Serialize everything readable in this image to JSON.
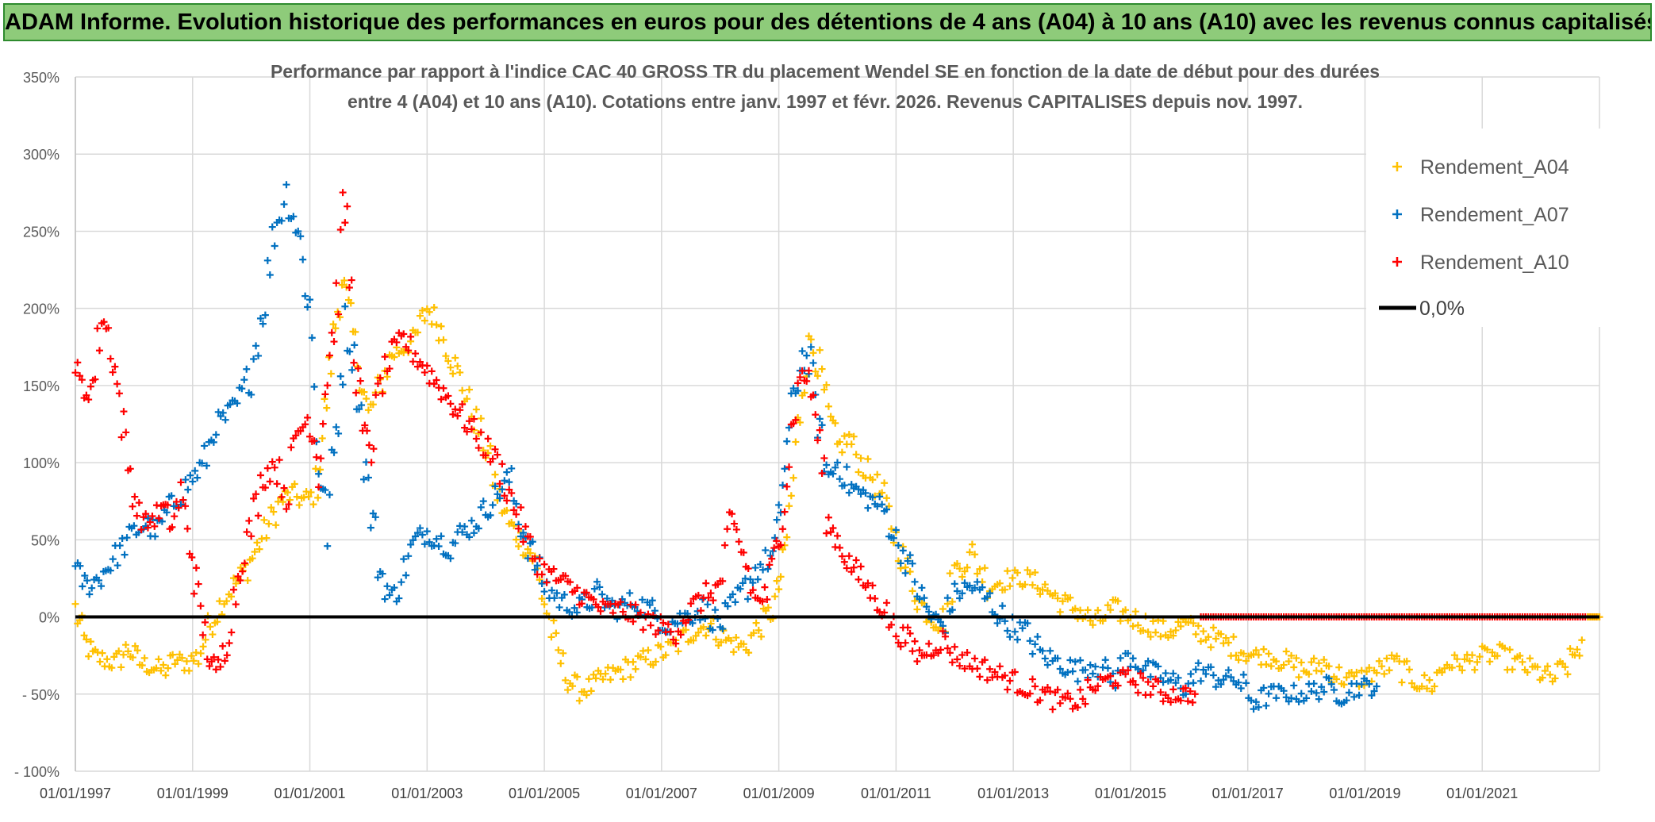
{
  "banner": {
    "text": "ADAM Informe. Evolution historique des performances en euros pour des détentions de 4 ans (A04) à 10 ans (A10) avec les revenus connus capitalisés"
  },
  "colors": {
    "banner_bg": "#8ecb7a",
    "A04": "#ffc000",
    "A07": "#0070c0",
    "A10": "#ff0000",
    "zero_line": "#000000",
    "grid": "#d9d9d9"
  },
  "chart_data": {
    "type": "scatter",
    "title_line1": "Performance par rapport à l'indice CAC 40 GROSS TR  du placement Wendel SE en fonction de la date de début pour des durées",
    "title_line2": "entre 4 (A04) et 10 ans (A10). Cotations entre janv. 1997 et févr. 2026. Revenus CAPITALISES depuis nov. 1997.",
    "xlabel": "",
    "ylabel": "",
    "x_range": [
      1997.0,
      2023.0
    ],
    "ylim": [
      -100,
      350
    ],
    "y_ticks": [
      {
        "value": 350,
        "label": "350%"
      },
      {
        "value": 300,
        "label": "300%"
      },
      {
        "value": 250,
        "label": "250%"
      },
      {
        "value": 200,
        "label": "200%"
      },
      {
        "value": 150,
        "label": "150%"
      },
      {
        "value": 100,
        "label": "100%"
      },
      {
        "value": 50,
        "label": "50%"
      },
      {
        "value": 0,
        "label": "0%"
      },
      {
        "value": -50,
        "label": "- 50%"
      },
      {
        "value": -100,
        "label": "- 100%"
      }
    ],
    "x_ticks": [
      {
        "value": 1997,
        "label": "01/01/1997"
      },
      {
        "value": 1999,
        "label": "01/01/1999"
      },
      {
        "value": 2001,
        "label": "01/01/2001"
      },
      {
        "value": 2003,
        "label": "01/01/2003"
      },
      {
        "value": 2005,
        "label": "01/01/2005"
      },
      {
        "value": 2007,
        "label": "01/01/2007"
      },
      {
        "value": 2009,
        "label": "01/01/2009"
      },
      {
        "value": 2011,
        "label": "01/01/2011"
      },
      {
        "value": 2013,
        "label": "01/01/2013"
      },
      {
        "value": 2015,
        "label": "01/01/2015"
      },
      {
        "value": 2017,
        "label": "01/01/2017"
      },
      {
        "value": 2019,
        "label": "01/01/2019"
      },
      {
        "value": 2021,
        "label": "01/01/2021"
      }
    ],
    "x_grid_years": [
      1997,
      1999,
      2001,
      2003,
      2005,
      2007,
      2009,
      2011,
      2013,
      2015,
      2017,
      2019,
      2021,
      2023
    ],
    "legend": [
      {
        "key": "A04",
        "label": "Rendement_A04",
        "kind": "marker"
      },
      {
        "key": "A07",
        "label": "Rendement_A07",
        "kind": "marker"
      },
      {
        "key": "A10",
        "label": "Rendement_A10",
        "kind": "marker"
      },
      {
        "key": "zero",
        "label": "0,0%",
        "kind": "line"
      }
    ],
    "zero_line": {
      "label": "0,0%",
      "value": 0
    },
    "series": [
      {
        "name": "Rendement_A04",
        "key": "A04",
        "x": [
          1997.0,
          1997.15,
          1997.3,
          1997.5,
          1997.7,
          1997.9,
          1998.1,
          1998.3,
          1998.5,
          1998.7,
          1998.9,
          1999.1,
          1999.3,
          1999.5,
          1999.7,
          1999.9,
          2000.1,
          2000.3,
          2000.5,
          2000.7,
          2000.9,
          2001.1,
          2001.25,
          2001.4,
          2001.55,
          2001.7,
          2001.85,
          2002.0,
          2002.2,
          2002.4,
          2002.6,
          2002.8,
          2003.0,
          2003.2,
          2003.4,
          2003.6,
          2003.8,
          2004.0,
          2004.2,
          2004.4,
          2004.6,
          2004.8,
          2005.0,
          2005.2,
          2005.4,
          2005.6,
          2005.8,
          2006.0,
          2006.3,
          2006.6,
          2006.9,
          2007.2,
          2007.5,
          2007.8,
          2008.1,
          2008.4,
          2008.7,
          2008.9,
          2009.0,
          2009.1,
          2009.25,
          2009.4,
          2009.55,
          2009.7,
          2009.85,
          2010.0,
          2010.2,
          2010.4,
          2010.6,
          2010.8,
          2011.0,
          2011.2,
          2011.4,
          2011.6,
          2011.8,
          2012.0,
          2012.3,
          2012.6,
          2012.9,
          2013.2,
          2013.5,
          2013.8,
          2014.1,
          2014.4,
          2014.7,
          2015.0,
          2015.3,
          2015.6,
          2015.9,
          2016.2,
          2016.5,
          2016.8,
          2017.1,
          2017.4,
          2017.7,
          2018.0,
          2018.3,
          2018.6,
          2018.9,
          2019.2,
          2019.5,
          2019.8,
          2020.1,
          2020.4,
          2020.7,
          2021.0,
          2021.3,
          2021.6,
          2021.9,
          2022.2,
          2022.5,
          2022.7
        ],
        "values": [
          5,
          -15,
          -25,
          -28,
          -30,
          -20,
          -30,
          -32,
          -35,
          -28,
          -30,
          -25,
          -5,
          10,
          20,
          30,
          45,
          60,
          75,
          80,
          75,
          80,
          130,
          180,
          220,
          190,
          160,
          130,
          150,
          170,
          175,
          180,
          200,
          190,
          170,
          150,
          130,
          110,
          80,
          60,
          50,
          40,
          10,
          -20,
          -40,
          -48,
          -45,
          -40,
          -35,
          -30,
          -25,
          -20,
          -10,
          -5,
          -15,
          -20,
          -5,
          5,
          20,
          40,
          90,
          150,
          180,
          160,
          130,
          110,
          115,
          100,
          90,
          75,
          50,
          30,
          10,
          0,
          -5,
          30,
          40,
          20,
          25,
          25,
          20,
          10,
          5,
          -5,
          5,
          0,
          -5,
          -10,
          -5,
          -10,
          -15,
          -20,
          -25,
          -25,
          -30,
          -35,
          -30,
          -40,
          -40,
          -35,
          -30,
          -40,
          -45,
          -30,
          -30,
          -25,
          -25,
          -30,
          -35,
          -40,
          -30,
          -15
        ]
      },
      {
        "name": "Rendement_A07",
        "key": "A07",
        "x": [
          1997.0,
          1997.2,
          1997.4,
          1997.6,
          1997.8,
          1998.0,
          1998.2,
          1998.4,
          1998.6,
          1998.8,
          1999.0,
          1999.2,
          1999.4,
          1999.6,
          1999.8,
          2000.0,
          2000.2,
          2000.4,
          2000.6,
          2000.8,
          2001.0,
          2001.15,
          2001.3,
          2001.45,
          2001.6,
          2001.8,
          2002.0,
          2002.2,
          2002.4,
          2002.6,
          2002.8,
          2003.0,
          2003.2,
          2003.4,
          2003.6,
          2003.8,
          2004.0,
          2004.2,
          2004.4,
          2004.6,
          2004.8,
          2005.0,
          2005.3,
          2005.6,
          2005.9,
          2006.2,
          2006.5,
          2006.8,
          2007.1,
          2007.4,
          2007.7,
          2008.0,
          2008.3,
          2008.6,
          2008.9,
          2009.0,
          2009.1,
          2009.25,
          2009.4,
          2009.55,
          2009.7,
          2009.85,
          2010.0,
          2010.2,
          2010.4,
          2010.6,
          2010.8,
          2011.0,
          2011.2,
          2011.4,
          2011.6,
          2011.8,
          2012.0,
          2012.3,
          2012.6,
          2012.9,
          2013.2,
          2013.5,
          2013.8,
          2014.1,
          2014.4,
          2014.7,
          2015.0,
          2015.3,
          2015.6,
          2015.9,
          2016.2,
          2016.5,
          2016.8,
          2017.1,
          2017.4,
          2017.7,
          2018.0,
          2018.3,
          2018.6,
          2018.9,
          2019.2
        ],
        "values": [
          30,
          20,
          25,
          35,
          45,
          55,
          60,
          55,
          70,
          80,
          90,
          100,
          125,
          130,
          140,
          160,
          200,
          250,
          275,
          250,
          200,
          100,
          60,
          120,
          190,
          160,
          80,
          30,
          10,
          30,
          50,
          55,
          50,
          45,
          55,
          60,
          70,
          80,
          90,
          60,
          40,
          20,
          10,
          5,
          15,
          5,
          10,
          5,
          -5,
          0,
          5,
          -5,
          10,
          30,
          40,
          60,
          100,
          140,
          170,
          160,
          120,
          90,
          100,
          85,
          80,
          75,
          70,
          50,
          35,
          15,
          0,
          -5,
          15,
          20,
          10,
          -5,
          -10,
          -25,
          -30,
          -35,
          -30,
          -40,
          -25,
          -35,
          -40,
          -45,
          -35,
          -40,
          -40,
          -55,
          -50,
          -50,
          -50,
          -45,
          -50,
          -45,
          -45
        ]
      },
      {
        "name": "Rendement_A10",
        "key": "A10",
        "x": [
          1997.0,
          1997.15,
          1997.3,
          1997.45,
          1997.6,
          1997.75,
          1997.9,
          1998.05,
          1998.2,
          1998.35,
          1998.5,
          1998.65,
          1998.8,
          1998.95,
          1999.1,
          1999.25,
          1999.4,
          1999.55,
          1999.7,
          1999.85,
          2000.0,
          2000.2,
          2000.4,
          2000.6,
          2000.8,
          2001.0,
          2001.15,
          2001.3,
          2001.45,
          2001.6,
          2001.75,
          2001.9,
          2002.05,
          2002.2,
          2002.4,
          2002.6,
          2002.8,
          2003.0,
          2003.2,
          2003.4,
          2003.6,
          2003.8,
          2004.0,
          2004.2,
          2004.4,
          2004.6,
          2004.8,
          2005.0,
          2005.2,
          2005.4,
          2005.6,
          2005.8,
          2006.0,
          2006.3,
          2006.6,
          2006.9,
          2007.2,
          2007.5,
          2007.8,
          2008.0,
          2008.2,
          2008.4,
          2008.6,
          2008.8,
          2009.0,
          2009.1,
          2009.25,
          2009.4,
          2009.55,
          2009.7,
          2009.85,
          2010.0,
          2010.2,
          2010.4,
          2010.6,
          2010.8,
          2011.0,
          2011.2,
          2011.4,
          2011.6,
          2011.8,
          2012.0,
          2012.3,
          2012.6,
          2012.9,
          2013.2,
          2013.5,
          2013.8,
          2014.1,
          2014.4,
          2014.7,
          2015.0,
          2015.3,
          2015.6,
          2015.9,
          2016.1
        ],
        "values": [
          160,
          145,
          150,
          195,
          180,
          140,
          100,
          70,
          60,
          65,
          70,
          60,
          80,
          50,
          10,
          -20,
          -40,
          -20,
          10,
          40,
          60,
          90,
          100,
          80,
          120,
          130,
          100,
          160,
          200,
          270,
          180,
          120,
          110,
          150,
          170,
          180,
          170,
          160,
          150,
          140,
          130,
          120,
          110,
          100,
          80,
          60,
          40,
          30,
          25,
          20,
          15,
          10,
          5,
          5,
          0,
          -5,
          -10,
          5,
          15,
          20,
          60,
          40,
          10,
          15,
          50,
          80,
          130,
          160,
          150,
          110,
          60,
          50,
          35,
          25,
          15,
          5,
          -10,
          -15,
          -25,
          -20,
          -15,
          -25,
          -30,
          -35,
          -40,
          -45,
          -50,
          -55,
          -55,
          -45,
          -40,
          -40,
          -45,
          -50,
          -50,
          -50
        ]
      },
      {
        "name": "Rendement_A10 (tail)",
        "key": "A10",
        "x": [
          2016.2,
          2016.5,
          2016.8,
          2017.1,
          2017.4,
          2017.7,
          2018.0,
          2018.3,
          2018.6,
          2018.9,
          2019.2,
          2019.5,
          2019.8,
          2020.1,
          2020.4,
          2020.7,
          2021.0,
          2021.3,
          2021.6,
          2021.9,
          2022.2,
          2022.5,
          2022.8,
          2023.0
        ],
        "values": [
          0,
          0,
          0,
          0,
          0,
          0,
          0,
          0,
          0,
          0,
          0,
          0,
          0,
          0,
          0,
          0,
          0,
          0,
          0,
          0,
          0,
          0,
          0,
          0
        ]
      },
      {
        "name": "Rendement_A04 (tail)",
        "key": "A04",
        "x": [
          2022.8,
          2022.9,
          2023.0
        ],
        "values": [
          0,
          0,
          0
        ]
      }
    ]
  }
}
